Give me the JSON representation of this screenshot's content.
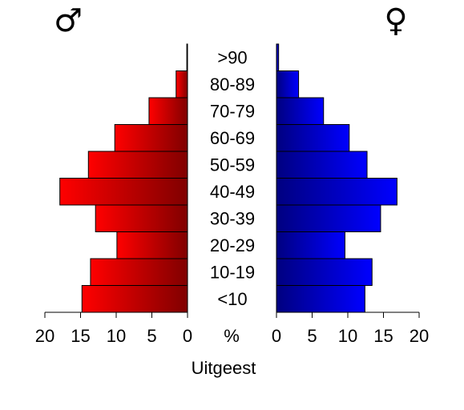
{
  "chart_data": {
    "type": "pyramid",
    "title": "Uitgeest",
    "x_label": "%",
    "categories": [
      "<10",
      "10-19",
      "20-29",
      "30-39",
      "40-49",
      "50-59",
      "60-69",
      "70-79",
      "80-89",
      ">90"
    ],
    "series": [
      {
        "name": "♂",
        "color": "#ff0000",
        "values": [
          14.8,
          13.6,
          9.9,
          12.9,
          17.9,
          13.9,
          10.2,
          5.4,
          1.6,
          0.1
        ]
      },
      {
        "name": "♀",
        "color": "#0000ff",
        "values": [
          12.4,
          13.4,
          9.6,
          14.6,
          16.9,
          12.7,
          10.2,
          6.6,
          3.1,
          0.3
        ]
      }
    ],
    "xlim": [
      0,
      20
    ],
    "xticks": [
      0,
      5,
      10,
      15,
      20
    ]
  }
}
